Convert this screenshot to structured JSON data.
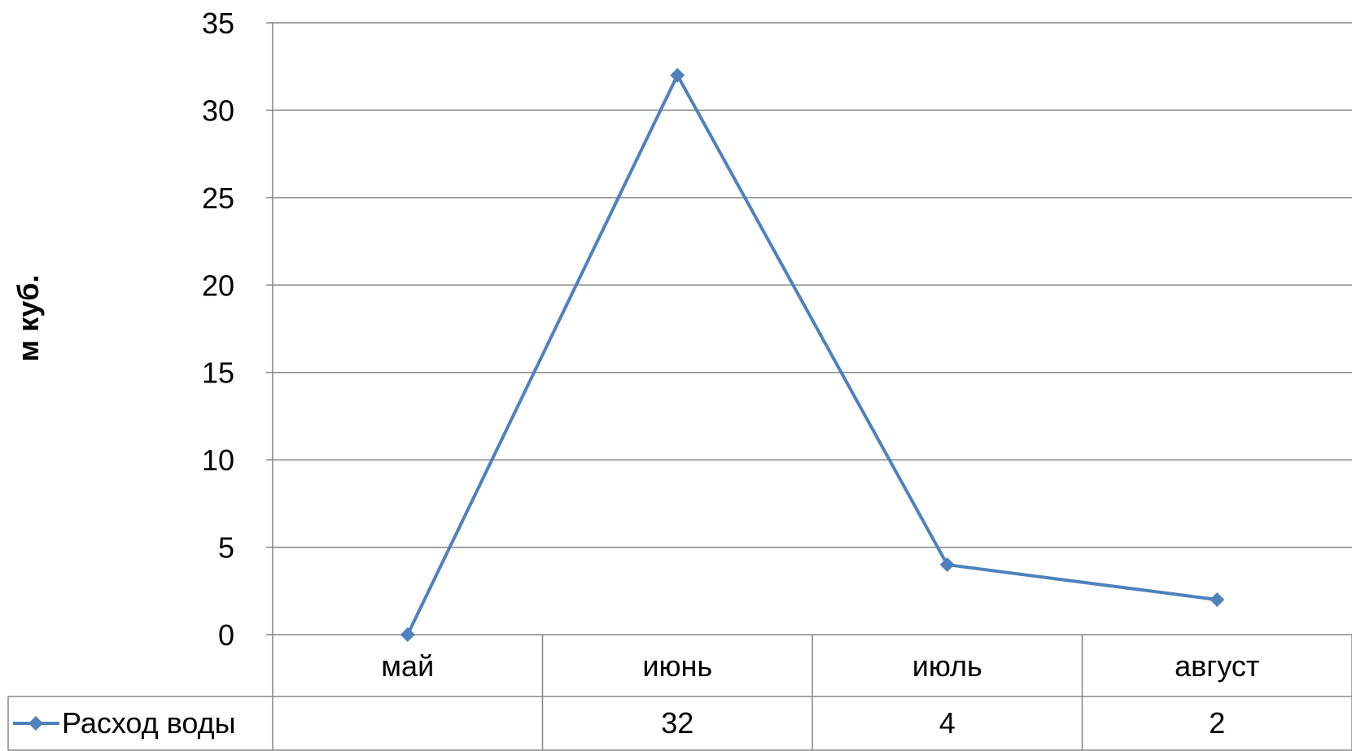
{
  "chart_data": {
    "type": "line",
    "title": "",
    "xlabel": "",
    "ylabel": "м куб.",
    "ylim": [
      0,
      35
    ],
    "y_ticks": [
      0,
      5,
      10,
      15,
      20,
      25,
      30,
      35
    ],
    "grid": true,
    "categories": [
      "май",
      "июнь",
      "июль",
      "август"
    ],
    "series": [
      {
        "name": "Расход воды",
        "values": [
          0,
          32,
          4,
          2
        ],
        "table_labels": [
          "",
          "32",
          "4",
          "2"
        ],
        "color": "#4F81BD",
        "marker": "diamond"
      }
    ],
    "data_table": true,
    "legend": "data-table-left"
  }
}
